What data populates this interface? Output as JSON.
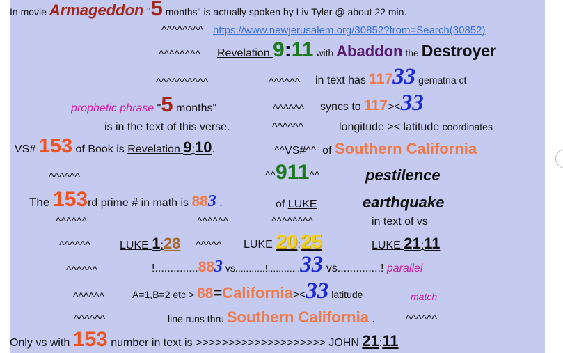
{
  "lines": [
    [
      "In movie ",
      "Armageddon",
      " \"",
      "5",
      " months\" is actually spoken by Liv Tyler @ about 22 min."
    ],
    [
      "^^^^^^^^ ",
      "https://www.newjerusalem.org/30852?from=Search(30852)"
    ],
    [
      "^^^^^^^^  ",
      "Revelation ",
      "9",
      ":",
      "11",
      " with ",
      "Abaddon",
      " the ",
      "Destroyer"
    ],
    [
      "^^^^^^^^^^",
      "^^^^^^",
      "in text has ",
      "117",
      "33",
      " gematria ct"
    ],
    [
      "prophetic phrase",
      " \"",
      "5",
      " months\"",
      "^^^^^^",
      "syncs to ",
      "117",
      "><",
      "33"
    ],
    [
      "is in the text of this verse.",
      "^^^^^^",
      "longitude >< latitude ",
      "coordinates"
    ],
    [
      "VS# ",
      "153",
      " of Book is ",
      "Revelation ",
      "9",
      ":",
      "10",
      ".",
      "^^VS#^^",
      "  of ",
      "Southern California"
    ],
    [
      "^^^^^^",
      "^^",
      "911",
      "^^",
      "pestilence"
    ],
    [
      "The ",
      "153",
      "rd prime # in math is ",
      "88",
      "3",
      " .",
      "of ",
      "LUKE",
      "earthquake"
    ],
    [
      "^^^^^^",
      "^^^^^^",
      "^^^^^^^^",
      "in text of vs"
    ],
    [
      "^^^^^^",
      "LUKE ",
      "1",
      ":",
      "28",
      "^^^^^",
      "LUKE ",
      "20",
      ":",
      "25",
      "LUKE ",
      "21",
      ":",
      "11"
    ],
    [
      "^^^^^^",
      "!..............",
      "88",
      "3",
      " vs...........!............",
      "33",
      " vs..............! ",
      "parallel"
    ],
    [
      "^^^^^^",
      "A=1,B=2 etc > ",
      "88",
      "=",
      "California",
      "><",
      "33",
      " latitude",
      "match"
    ],
    [
      "^^^^^^",
      "line runs thru ",
      "Southern California",
      " .",
      "^^^^^^"
    ],
    [
      "Only vs with ",
      "153",
      " number in text is >>>>>>>>>>>>>>>>>>>> ",
      "JOHN ",
      "21",
      ":",
      "11"
    ]
  ]
}
